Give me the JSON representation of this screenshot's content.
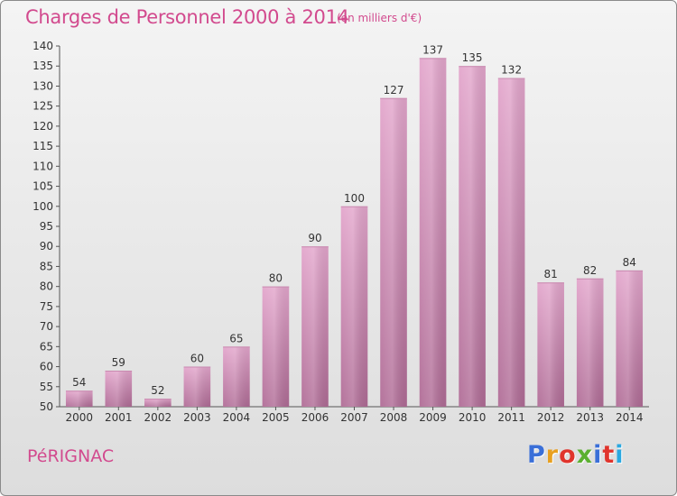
{
  "header": {
    "title": "Charges de Personnel 2000 à 2014",
    "subtitle": "(en milliers d'€)"
  },
  "footer": {
    "commune": "PéRIGNAC",
    "brand": "Proxiti",
    "brand_colors": [
      "#3a6fd8",
      "#e8a020",
      "#e0342c",
      "#5bb030",
      "#3a6fd8",
      "#e0342c",
      "#2aa8e0"
    ]
  },
  "chart_data": {
    "type": "bar",
    "title": "Charges de Personnel 2000 à 2014",
    "subtitle": "(en milliers d'€)",
    "xlabel": "",
    "ylabel": "",
    "categories": [
      "2000",
      "2001",
      "2002",
      "2003",
      "2004",
      "2005",
      "2006",
      "2007",
      "2008",
      "2009",
      "2010",
      "2011",
      "2012",
      "2013",
      "2014"
    ],
    "values": [
      54,
      59,
      52,
      60,
      65,
      80,
      90,
      100,
      127,
      137,
      135,
      132,
      81,
      82,
      84
    ],
    "ylim": [
      50,
      140
    ],
    "yticks": [
      50,
      55,
      60,
      65,
      70,
      75,
      80,
      85,
      90,
      95,
      100,
      105,
      110,
      115,
      120,
      125,
      130,
      135,
      140
    ],
    "grid": false,
    "legend": "none",
    "bar_color_top": "#e3a6cc",
    "bar_color_bottom": "#b06c96",
    "label_color": "#333333"
  }
}
